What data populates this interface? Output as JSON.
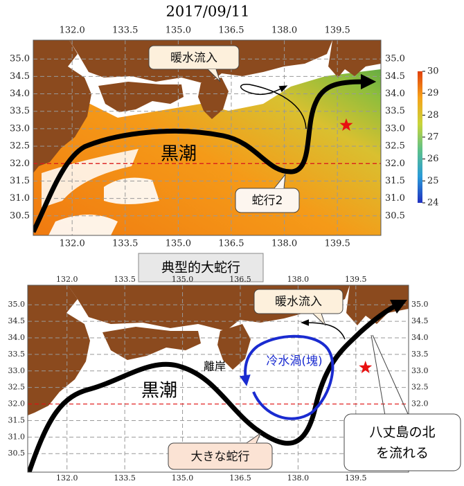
{
  "title": "2017/09/11",
  "caption": "典型的大蛇行",
  "maps": [
    {
      "xlim": [
        130.9,
        140.73
      ],
      "ylim": [
        29.94,
        35.54
      ],
      "xticks": [
        {
          "value": 132,
          "label": "132.0"
        },
        {
          "value": 133.5,
          "label": "133.5"
        },
        {
          "value": 135,
          "label": "135.0"
        },
        {
          "value": 136.5,
          "label": "136.5"
        },
        {
          "value": 138,
          "label": "138.0"
        },
        {
          "value": 139.5,
          "label": "139.5"
        }
      ],
      "yticks": [
        {
          "value": 35,
          "label": "35.0"
        },
        34.5,
        {
          "value": 34,
          "label": "34.0"
        },
        33.5,
        {
          "value": 33,
          "label": "33.0"
        },
        32.5,
        {
          "value": 32,
          "label": "32.0"
        },
        31.5,
        {
          "value": 31,
          "label": "31.0"
        },
        30.5
      ],
      "reference_latitude": 32,
      "star": [
        139.75,
        33.1
      ],
      "colorbar": {
        "lim": [
          24,
          30
        ],
        "ticks": [
          24,
          25,
          26,
          27,
          28,
          29,
          30
        ]
      },
      "labels": [
        "暖水流入",
        "黒潮",
        "蛇行2"
      ]
    },
    {
      "xlim": [
        130.98,
        140.87
      ],
      "ylim": [
        29.94,
        35.59
      ],
      "xticks": [
        {
          "value": 132,
          "label": "132.0"
        },
        {
          "value": 133.5,
          "label": "133.5"
        },
        {
          "value": 135,
          "label": "135.0"
        },
        {
          "value": 136.5,
          "label": "136.5"
        },
        {
          "value": 138,
          "label": "138.0"
        },
        {
          "value": 139.5,
          "label": "139.5"
        }
      ],
      "yticks": [
        {
          "value": 35,
          "label": "35.0"
        },
        34.5,
        {
          "value": 34,
          "label": "34.0"
        },
        33.5,
        {
          "value": 33,
          "label": "33.0"
        },
        32.5,
        {
          "value": 32,
          "label": "32.0"
        },
        31.5,
        {
          "value": 31,
          "label": "31.0"
        },
        30.5
      ],
      "reference_latitude": 32,
      "star": [
        139.75,
        33.1
      ],
      "labels": [
        "暖水流入",
        "冷水渦(塊)",
        "離岸",
        "黒潮",
        "大きな蛇行",
        [
          "八丈島の北",
          "を流れる"
        ]
      ]
    }
  ]
}
